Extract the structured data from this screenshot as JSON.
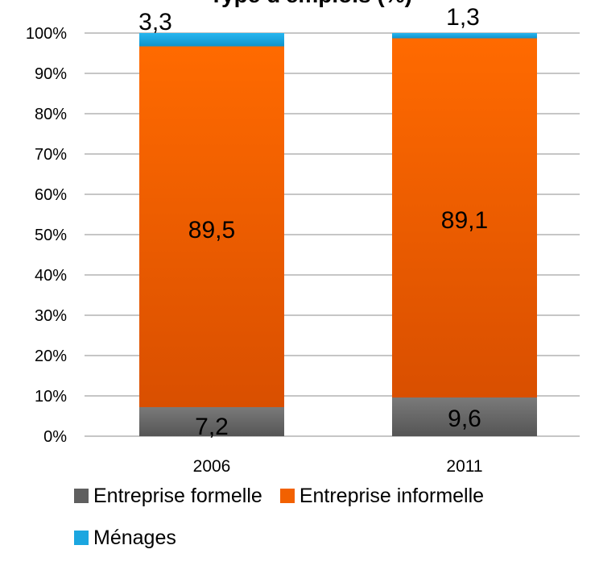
{
  "chart_data": {
    "type": "bar",
    "stacked": "percent",
    "title": "Type d'emplois (%)",
    "categories": [
      "2006",
      "2011"
    ],
    "ylim": [
      0,
      100
    ],
    "yticks": [
      "0%",
      "10%",
      "20%",
      "30%",
      "40%",
      "50%",
      "60%",
      "70%",
      "80%",
      "90%",
      "100%"
    ],
    "grid": true,
    "legend_position": "bottom",
    "series": [
      {
        "name": "Entreprise formelle",
        "values": [
          7.2,
          9.6
        ],
        "labels": [
          "7,2",
          "9,6"
        ],
        "color": "#6b6b6b"
      },
      {
        "name": "Entreprise informelle",
        "values": [
          89.5,
          89.1
        ],
        "labels": [
          "89,5",
          "89,1"
        ],
        "color": "#f26100"
      },
      {
        "name": "Ménages",
        "values": [
          3.3,
          1.3
        ],
        "labels": [
          "3,3",
          "1,3"
        ],
        "color": "#1ba6e0"
      }
    ]
  }
}
